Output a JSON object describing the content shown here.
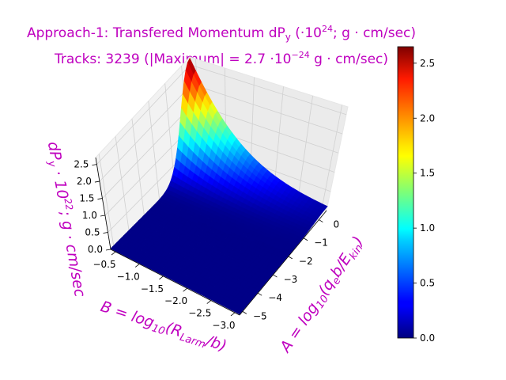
{
  "chart_data": {
    "type": "surface3d",
    "title_line1": "Approach-1: Transfered Momentum dP",
    "title_line1_sub": "y",
    "title_line1_rest": " (·10",
    "title_line1_sup": "24",
    "title_line1_end": "; g · cm/sec)",
    "title_line2": "Tracks: 3239 (|Maximum| =   2.7 ·10",
    "title_line2_sup": "−24",
    "title_line2_end": " g · cm/sec)",
    "zlabel": "dP",
    "zlabel_sub": "y",
    "zlabel_rest": " · 10",
    "zlabel_sup": "22",
    "zlabel_end": "; g · cm/sec",
    "xlabel": "A = log",
    "xlabel_sub": "10",
    "xlabel_rest": "(q",
    "xlabel_rest2": "e",
    "xlabel_rest3": "b/E",
    "xlabel_rest4": "kin",
    "xlabel_end": ")",
    "ylabel": "B = log",
    "ylabel_sub": "10",
    "ylabel_rest": "(R",
    "ylabel_rest2": "Larm",
    "ylabel_end": "/b)",
    "x_axis_name": "A",
    "y_axis_name": "B",
    "x_ticks": [
      "0",
      "−1",
      "−2",
      "−3",
      "−4",
      "−5"
    ],
    "y_ticks": [
      "−0.5",
      "−1.0",
      "−1.5",
      "−2.0",
      "−2.5",
      "−3.0"
    ],
    "z_ticks": [
      "0.0",
      "0.5",
      "1.0",
      "1.5",
      "2.0",
      "2.5"
    ],
    "colorbar_ticks": [
      "0.0",
      "0.5",
      "1.0",
      "1.5",
      "2.0",
      "2.5"
    ],
    "xlim": [
      -5.2,
      0.5
    ],
    "ylim": [
      -3.1,
      -0.4
    ],
    "zlim": [
      0,
      2.7
    ],
    "colorbar_range": [
      0,
      2.65
    ],
    "colormap": "jet",
    "surface_peak": {
      "A": 0.5,
      "B": -0.4,
      "dPy": 2.65
    },
    "grid": true
  }
}
